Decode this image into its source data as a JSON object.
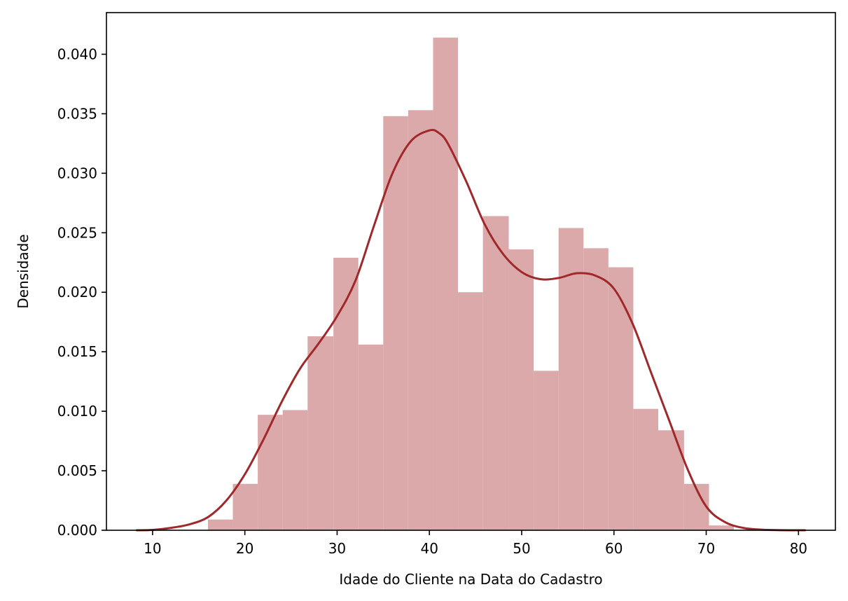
{
  "chart_data": {
    "type": "bar",
    "title": "",
    "xlabel": "Idade do Cliente na Data do Cadastro",
    "ylabel": "Densidade",
    "xlim": [
      5,
      84
    ],
    "ylim": [
      0,
      0.0435
    ],
    "x_ticks": [
      10,
      20,
      30,
      40,
      50,
      60,
      70,
      80
    ],
    "x_tick_labels": [
      "10",
      "20",
      "30",
      "40",
      "50",
      "60",
      "70",
      "80"
    ],
    "y_ticks": [
      0.0,
      0.005,
      0.01,
      0.015,
      0.02,
      0.025,
      0.03,
      0.035,
      0.04
    ],
    "y_tick_labels": [
      "0.000",
      "0.005",
      "0.010",
      "0.015",
      "0.020",
      "0.025",
      "0.030",
      "0.035",
      "0.040"
    ],
    "grid": false,
    "histogram": {
      "bin_edges": [
        16.0,
        18.7,
        21.4,
        24.1,
        26.8,
        29.6,
        32.3,
        35.0,
        37.7,
        40.4,
        43.1,
        45.8,
        48.6,
        51.3,
        54.0,
        56.7,
        59.4,
        62.1,
        64.8,
        67.6,
        70.3,
        73.0
      ],
      "values": [
        0.0009,
        0.0039,
        0.0097,
        0.0101,
        0.0163,
        0.0229,
        0.0156,
        0.0348,
        0.0353,
        0.0414,
        0.02,
        0.0264,
        0.0236,
        0.0134,
        0.0254,
        0.0237,
        0.0221,
        0.0102,
        0.0084,
        0.0039,
        0.0004
      ],
      "color": "#dba9aa"
    },
    "kde": {
      "x": [
        8.3,
        10,
        12,
        14,
        16,
        18,
        20,
        22,
        24,
        26,
        28,
        30,
        32,
        34,
        36,
        38,
        40,
        41,
        42,
        44,
        46,
        48,
        50,
        52,
        54,
        56,
        58,
        60,
        62,
        64,
        66,
        68,
        70,
        72,
        74,
        76,
        78,
        80.7
      ],
      "y": [
        0.0,
        3e-05,
        0.0002,
        0.0005,
        0.0011,
        0.0025,
        0.0047,
        0.0076,
        0.0108,
        0.0136,
        0.0157,
        0.018,
        0.021,
        0.0256,
        0.03,
        0.0327,
        0.0336,
        0.0334,
        0.0325,
        0.0293,
        0.0257,
        0.0232,
        0.0217,
        0.0211,
        0.0212,
        0.0216,
        0.0214,
        0.0203,
        0.0174,
        0.0133,
        0.0092,
        0.0051,
        0.002,
        0.0007,
        0.0002,
        5e-05,
        1e-05,
        0.0
      ],
      "color": "#a0282a"
    }
  }
}
